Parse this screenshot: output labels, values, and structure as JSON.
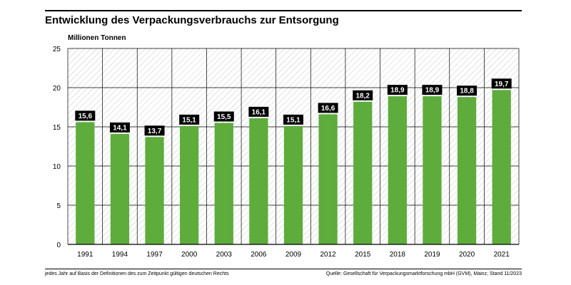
{
  "header": {
    "title": "Entwicklung des Verpackungsverbrauchs zur Entsorgung",
    "unit_label": "Millionen Tonnen"
  },
  "footer": {
    "note": "jedes Jahr auf Basis der Definitionen des zum Zeitpunkt gültigen deutschen Rechts",
    "source": "Quelle: Gesellschaft für Verpackungsmarktforschung mbH (GVM), Mainz, Stand 11/2023"
  },
  "colors": {
    "bar": "#5dac3c",
    "label_bg": "#000000",
    "label_text": "#ffffff",
    "hatch": "#c9c9c9"
  },
  "chart_data": {
    "type": "bar",
    "title": "Entwicklung des Verpackungsverbrauchs zur Entsorgung",
    "ylabel": "Millionen Tonnen",
    "xlabel": "",
    "categories": [
      "1991",
      "1994",
      "1997",
      "2000",
      "2003",
      "2006",
      "2009",
      "2012",
      "2015",
      "2018",
      "2019",
      "2020",
      "2021"
    ],
    "values": [
      15.6,
      14.1,
      13.7,
      15.1,
      15.5,
      16.1,
      15.1,
      16.6,
      18.2,
      18.9,
      18.9,
      18.8,
      19.7
    ],
    "value_labels": [
      "15,6",
      "14,1",
      "13,7",
      "15,1",
      "15,5",
      "16,1",
      "15,1",
      "16,6",
      "18,2",
      "18,9",
      "18,9",
      "18,8",
      "19,7"
    ],
    "ylim": [
      0,
      25
    ],
    "yticks": [
      0,
      5,
      10,
      15,
      20,
      25
    ],
    "grid": true,
    "background": "hatched"
  }
}
